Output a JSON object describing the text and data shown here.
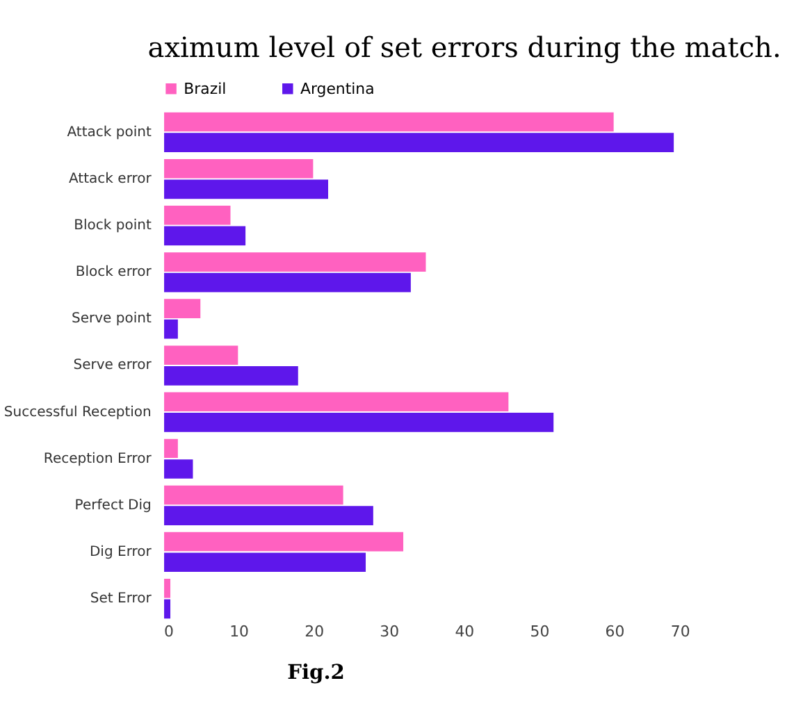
{
  "chart_data": {
    "type": "bar",
    "orientation": "horizontal",
    "categories": [
      "Attack point",
      "Attack error",
      "Block point",
      "Block error",
      "Serve point",
      "Serve error",
      "Successful Reception",
      "Reception Error",
      "Perfect Dig",
      "Dig Error",
      "Set Error"
    ],
    "series": [
      {
        "name": "Brazil",
        "color": "#ff61c0",
        "values": [
          60,
          20,
          9,
          35,
          5,
          10,
          46,
          2,
          24,
          32,
          1
        ]
      },
      {
        "name": "Argentina",
        "color": "#5e17eb",
        "values": [
          68,
          22,
          11,
          33,
          2,
          18,
          52,
          4,
          28,
          27,
          1
        ]
      }
    ],
    "xlim": [
      0,
      70
    ],
    "xticks": [
      0,
      10,
      20,
      30,
      40,
      50,
      60,
      70
    ],
    "grid": false,
    "legend": "top",
    "annotations": [
      "aximum level of set errors during the match.",
      "Fig.2"
    ]
  }
}
